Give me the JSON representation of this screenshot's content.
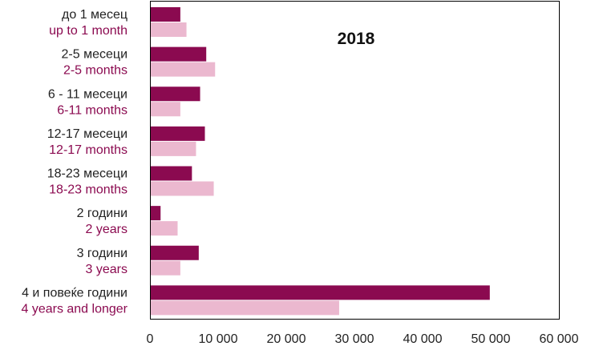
{
  "chart_data": {
    "type": "bar",
    "orientation": "horizontal",
    "title": "2018",
    "categories": [
      {
        "primary": "до 1 месец",
        "secondary": "up to 1 month"
      },
      {
        "primary": "2-5 месеци",
        "secondary": "2-5 months"
      },
      {
        "primary": "6 - 11 месеци",
        "secondary": "6-11 months"
      },
      {
        "primary": "12-17 месеци",
        "secondary": "12-17 months"
      },
      {
        "primary": "18-23 месеци",
        "secondary": "18-23 months"
      },
      {
        "primary": "2 години",
        "secondary": "2 years"
      },
      {
        "primary": "3 години",
        "secondary": "3 years"
      },
      {
        "primary": "4 и повеќе години",
        "secondary": "4 years and longer"
      }
    ],
    "series": [
      {
        "values": [
          4400,
          8200,
          7300,
          8000,
          6100,
          1500,
          7100,
          49800
        ],
        "color": "#8b0a50"
      },
      {
        "values": [
          5300,
          9500,
          4400,
          6700,
          9300,
          4000,
          4400,
          27700
        ],
        "color": "#ebb8cf"
      }
    ],
    "xlim": [
      0,
      60000
    ],
    "xticks": [
      {
        "value": 0,
        "label": "0"
      },
      {
        "value": 10000,
        "label": "10 000"
      },
      {
        "value": 20000,
        "label": "20 000"
      },
      {
        "value": 30000,
        "label": "30 000"
      },
      {
        "value": 40000,
        "label": "40 000"
      },
      {
        "value": 50000,
        "label": "50 000"
      },
      {
        "value": 60000,
        "label": "60 000"
      }
    ],
    "grid": false,
    "legend": "none",
    "label_colors": {
      "primary": "#222222",
      "secondary": "#8b0a50"
    },
    "frame_color": "#000000"
  }
}
